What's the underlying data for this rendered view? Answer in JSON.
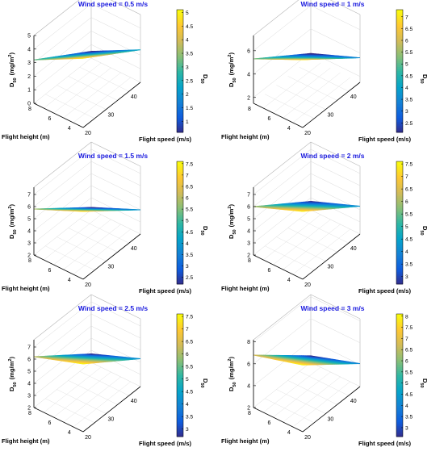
{
  "chart_data": [
    {
      "type": "surface",
      "title": "Wind speed = 0.5 m/s",
      "zlabel": "D50 (mg/m2)",
      "zlabel_main": "D",
      "zlabel_sub": "50",
      "zlabel_rest": "(mg/m",
      "zlabel_sup": "2",
      "zlabel_close": ")",
      "xlabel": "Flight height (m)",
      "ylabel": "Flight speed (m/s)",
      "colorbar_label_main": "D",
      "colorbar_label_sub": "50",
      "x_ticks": [
        "8",
        "6",
        "4"
      ],
      "y_ticks": [
        "20",
        "30",
        "40"
      ],
      "z_ticks": [
        "0",
        "1",
        "2",
        "3",
        "4",
        "5"
      ],
      "colorbar_ticks": [
        "1",
        "1.5",
        "2",
        "2.5",
        "3",
        "3.5",
        "4",
        "4.5",
        "5"
      ],
      "zlim": [
        0,
        5
      ],
      "colorbar_range": [
        0.6,
        5.1
      ],
      "corners": {
        "x8_y20": 3.2,
        "x8_y45": 0.5,
        "x3_y20": 5.1,
        "x3_y45": 2.4
      }
    },
    {
      "type": "surface",
      "title": "Wind speed = 1 m/s",
      "zlabel_main": "D",
      "zlabel_sub": "50",
      "zlabel_rest": "(mg/m",
      "zlabel_sup": "2",
      "zlabel_close": ")",
      "xlabel": "Flight height (m)",
      "ylabel": "Flight speed (m/s)",
      "colorbar_label_main": "D",
      "colorbar_label_sub": "50",
      "x_ticks": [
        "8",
        "6",
        "4"
      ],
      "y_ticks": [
        "20",
        "30",
        "40"
      ],
      "z_ticks": [
        "2",
        "4",
        "6"
      ],
      "colorbar_ticks": [
        "2.5",
        "3",
        "3.5",
        "4",
        "4.5",
        "5",
        "5.5",
        "6",
        "6.5",
        "7"
      ],
      "zlim": [
        1.5,
        7.3
      ],
      "colorbar_range": [
        2.1,
        7.3
      ],
      "corners": {
        "x8_y20": 5.3,
        "x8_y45": 1.9,
        "x3_y20": 7.3,
        "x3_y45": 3.6
      }
    },
    {
      "type": "surface",
      "title": "Wind speed = 1.5 m/s",
      "zlabel_main": "D",
      "zlabel_sub": "50",
      "zlabel_rest": "(mg/m",
      "zlabel_sup": "2",
      "zlabel_close": ")",
      "xlabel": "Flight height (m)",
      "ylabel": "Flight speed (m/s)",
      "colorbar_label_main": "D",
      "colorbar_label_sub": "50",
      "x_ticks": [
        "8",
        "6",
        "4"
      ],
      "y_ticks": [
        "20",
        "30",
        "40"
      ],
      "z_ticks": [
        "2",
        "3",
        "4",
        "5",
        "6",
        "7"
      ],
      "colorbar_ticks": [
        "2.5",
        "3",
        "3.5",
        "4",
        "4.5",
        "5",
        "5.5",
        "6",
        "6.5",
        "7",
        "7.5"
      ],
      "zlim": [
        2,
        7.6
      ],
      "colorbar_range": [
        2.2,
        7.6
      ],
      "corners": {
        "x8_y20": 5.8,
        "x8_y45": 2.2,
        "x3_y20": 7.6,
        "x3_y45": 4.0
      }
    },
    {
      "type": "surface",
      "title": "Wind speed = 2 m/s",
      "zlabel_main": "D",
      "zlabel_sub": "50",
      "zlabel_rest": "(mg/m",
      "zlabel_sup": "2",
      "zlabel_close": ")",
      "xlabel": "Flight height (m)",
      "ylabel": "Flight speed (m/s)",
      "colorbar_label_main": "D",
      "colorbar_label_sub": "50",
      "x_ticks": [
        "8",
        "6",
        "4"
      ],
      "y_ticks": [
        "20",
        "30",
        "40"
      ],
      "z_ticks": [
        "2",
        "3",
        "4",
        "5",
        "6",
        "7"
      ],
      "colorbar_ticks": [
        "3",
        "3.5",
        "4",
        "4.5",
        "5",
        "5.5",
        "6",
        "6.5",
        "7",
        "7.5"
      ],
      "zlim": [
        2,
        7.6
      ],
      "colorbar_range": [
        2.7,
        7.6
      ],
      "corners": {
        "x8_y20": 6.0,
        "x8_y45": 2.7,
        "x3_y20": 7.6,
        "x3_y45": 4.3
      }
    },
    {
      "type": "surface",
      "title": "Wind speed = 2.5 m/s",
      "zlabel_main": "D",
      "zlabel_sub": "50",
      "zlabel_rest": "(mg/m",
      "zlabel_sup": "2",
      "zlabel_close": ")",
      "xlabel": "Flight height (m)",
      "ylabel": "Flight speed (m/s)",
      "colorbar_label_main": "D",
      "colorbar_label_sub": "50",
      "x_ticks": [
        "8",
        "6",
        "4"
      ],
      "y_ticks": [
        "20",
        "30",
        "40"
      ],
      "z_ticks": [
        "2",
        "3",
        "4",
        "5",
        "6",
        "7"
      ],
      "colorbar_ticks": [
        "3",
        "3.5",
        "4",
        "4.5",
        "5",
        "5.5",
        "6",
        "6.5",
        "7",
        "7.5"
      ],
      "zlim": [
        2,
        7.6
      ],
      "colorbar_range": [
        2.7,
        7.6
      ],
      "corners": {
        "x8_y20": 6.2,
        "x8_y45": 2.7,
        "x3_y20": 7.6,
        "x3_y45": 4.3
      }
    },
    {
      "type": "surface",
      "title": "Wind speed = 3 m/s",
      "zlabel_main": "D",
      "zlabel_sub": "50",
      "zlabel_rest": "(mg/m",
      "zlabel_sup": "2",
      "zlabel_close": ")",
      "xlabel": "Flight height (m)",
      "ylabel": "Flight speed (m/s)",
      "colorbar_label_main": "D",
      "colorbar_label_sub": "50",
      "x_ticks": [
        "8",
        "6",
        "4"
      ],
      "y_ticks": [
        "20",
        "30",
        "40"
      ],
      "z_ticks": [
        "2",
        "4",
        "6",
        "8"
      ],
      "colorbar_ticks": [
        "3",
        "3.5",
        "4",
        "4.5",
        "5",
        "5.5",
        "6",
        "6.5",
        "7",
        "7.5",
        "8"
      ],
      "zlim": [
        2,
        8.2
      ],
      "colorbar_range": [
        2.6,
        8.1
      ],
      "corners": {
        "x8_y20": 6.8,
        "x8_y45": 2.6,
        "x3_y20": 8.1,
        "x3_y45": 4.1
      }
    }
  ],
  "colormap": [
    "#352a87",
    "#0f5cdd",
    "#1481d6",
    "#06a4ca",
    "#2eb7a4",
    "#87bf77",
    "#d1bb59",
    "#fec832",
    "#f9fb0e"
  ],
  "colors": {
    "title": "#1a1adf",
    "grid": "#d9d9d9",
    "axis": "#000000"
  }
}
